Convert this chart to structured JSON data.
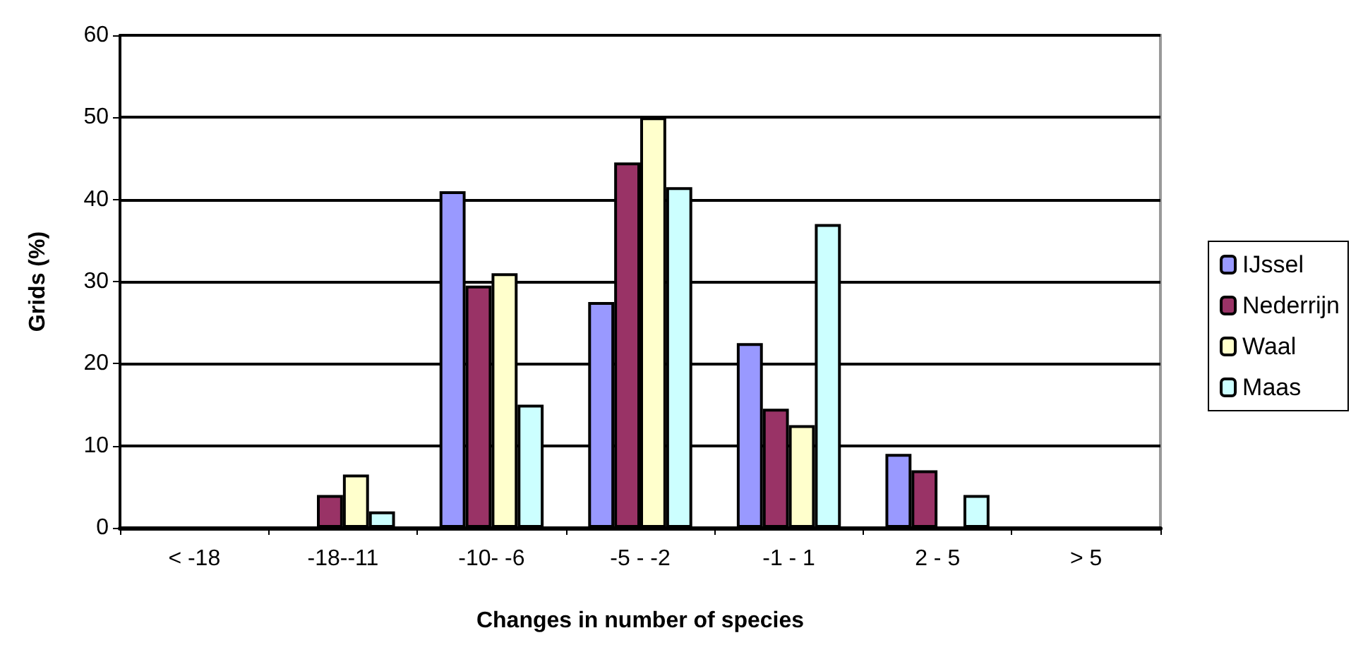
{
  "chart_data": {
    "type": "bar",
    "xlabel": "Changes in number of species",
    "ylabel": "Grids (%)",
    "categories": [
      "< -18",
      "-18--11",
      "-10- -6",
      "-5 - -2",
      "-1 - 1",
      "2 - 5",
      "> 5"
    ],
    "series": [
      {
        "name": "IJssel",
        "color": "#9999ff",
        "values": [
          null,
          null,
          41,
          27.5,
          22.5,
          9,
          null
        ]
      },
      {
        "name": "Nederrijn",
        "color": "#993366",
        "values": [
          null,
          4,
          29.5,
          44.5,
          14.5,
          7,
          null
        ]
      },
      {
        "name": "Waal",
        "color": "#ffffcc",
        "values": [
          null,
          6.5,
          31,
          50,
          12.5,
          null,
          null
        ]
      },
      {
        "name": "Maas",
        "color": "#ccffff",
        "values": [
          null,
          2,
          15,
          41.5,
          37,
          4,
          null
        ]
      }
    ],
    "ylim": [
      0,
      60
    ],
    "yticks": [
      0,
      10,
      20,
      30,
      40,
      50,
      60
    ],
    "grid": "y",
    "legend": "right"
  }
}
